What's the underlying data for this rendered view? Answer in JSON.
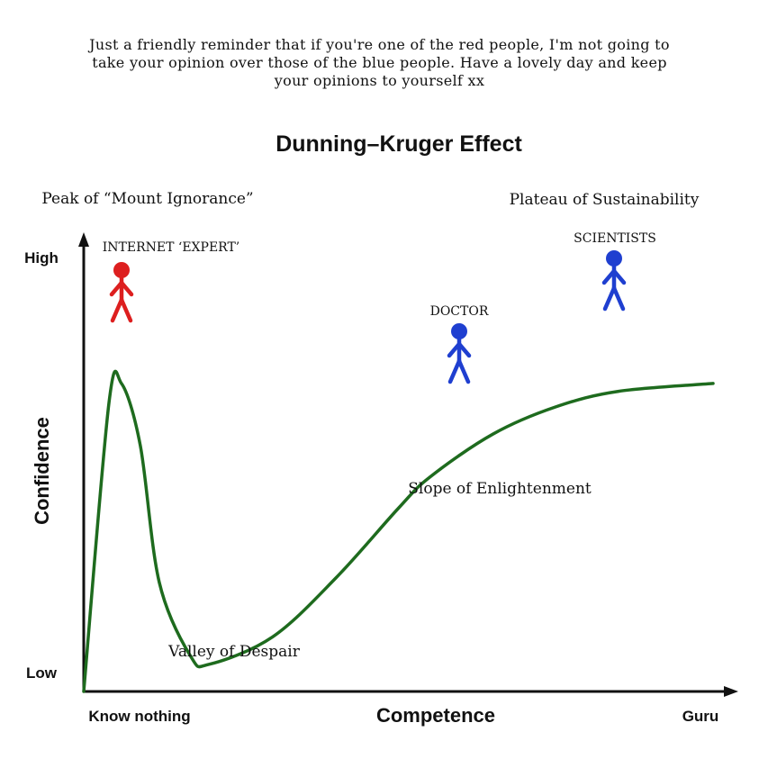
{
  "caption": {
    "lines": [
      "Just a friendly reminder that if you're one of the red people, I'm not going to",
      "take your opinion over those of the blue people. Have a lovely day and keep",
      "your opinions to yourself xx"
    ]
  },
  "chart_data": {
    "type": "line",
    "title": "Dunning–Kruger Effect",
    "xlabel": "Competence",
    "ylabel": "Confidence",
    "x_ticks": {
      "min_label": "Know nothing",
      "max_label": "Guru"
    },
    "y_ticks": {
      "min_label": "Low",
      "max_label": "High"
    },
    "xlim": [
      0,
      1
    ],
    "ylim": [
      0,
      1
    ],
    "grid": false,
    "series": [
      {
        "color": "#1e6b1e",
        "x": [
          0.0,
          0.04,
          0.06,
          0.09,
          0.12,
          0.17,
          0.2,
          0.3,
          0.4,
          0.5,
          0.55,
          0.65,
          0.75,
          0.85,
          1.0
        ],
        "y": [
          0.0,
          0.74,
          0.79,
          0.63,
          0.28,
          0.09,
          0.07,
          0.14,
          0.29,
          0.47,
          0.55,
          0.66,
          0.73,
          0.77,
          0.79
        ]
      }
    ],
    "annotations": [
      {
        "id": "peak",
        "text": "Peak of “Mount Ignorance”"
      },
      {
        "id": "plateau",
        "text": "Plateau of Sustainability"
      },
      {
        "id": "valley",
        "text": "Valley of Despair"
      },
      {
        "id": "slope",
        "text": "Slope of Enlightenment"
      }
    ],
    "figures": [
      {
        "id": "internet-expert",
        "label": "INTERNET ‘EXPERT’",
        "color": "#dd1f1f"
      },
      {
        "id": "doctor",
        "label": "DOCTOR",
        "color": "#1f3fd0"
      },
      {
        "id": "scientists",
        "label": "SCIENTISTS",
        "color": "#1f3fd0"
      }
    ],
    "colors": {
      "axis": "#111111",
      "curve": "#1e6b1e",
      "red_people": "#dd1f1f",
      "blue_people": "#1f3fd0"
    }
  }
}
